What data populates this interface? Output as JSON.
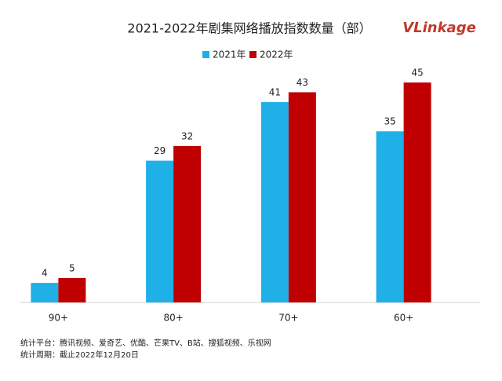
{
  "chart_data": {
    "type": "bar",
    "title": "2021-2022年剧集网络播放指数数量（部）",
    "categories": [
      "90+",
      "80+",
      "70+",
      "60+"
    ],
    "series": [
      {
        "name": "2021年",
        "color": "#1eb0e6",
        "values": [
          4,
          29,
          41,
          35
        ]
      },
      {
        "name": "2022年",
        "color": "#c00000",
        "values": [
          5,
          32,
          43,
          45
        ]
      }
    ]
  },
  "logo": "VLinkage",
  "notes": [
    "统计平台：腾讯视频、爱奇艺、优酷、芒果TV、B站、搜狐视频、乐视网",
    "统计周期：截止2022年12月20日"
  ]
}
